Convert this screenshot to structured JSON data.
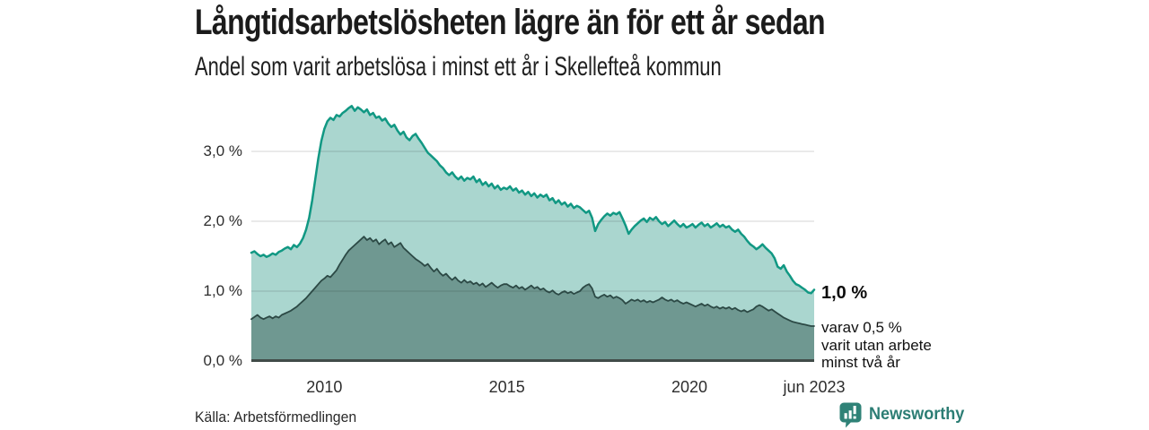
{
  "header": {
    "title": "Långtidsarbetslösheten lägre än för ett år sedan",
    "subtitle": "Andel som varit arbetslösa i minst ett år i Skellefteå kommun"
  },
  "annotations": {
    "latest_value": "1,0 %",
    "secondary_lines": [
      "varav 0,5 %",
      "varit utan arbete",
      "minst två år"
    ]
  },
  "source": {
    "label": "Källa: Arbetsförmedlingen"
  },
  "brand": {
    "name": "Newsworthy",
    "icon": "bar-chart-bubble-icon",
    "color": "#2c7d74"
  },
  "colors": {
    "background": "#ffffff",
    "grid": "rgba(0,0,0,0.13)",
    "baseline": "#414b48",
    "text": "#1b1b1b",
    "brand_teal": "#2c7d74"
  },
  "chart_data": {
    "type": "area",
    "title": "Långtidsarbetslösheten lägre än för ett år sedan",
    "subtitle": "Andel som varit arbetslösa i minst ett år i Skellefteå kommun",
    "x_frequency": "monthly",
    "x_start": 2008.0,
    "x_end_label": "jun 2023",
    "ylim": [
      0,
      3.82
    ],
    "grid": true,
    "legend_position": "none",
    "y_ticks": [
      {
        "y": 0,
        "label": "0,0 %"
      },
      {
        "y": 1,
        "label": "1,0 %"
      },
      {
        "y": 2,
        "label": "2,0 %"
      },
      {
        "y": 3,
        "label": "3,0 %"
      }
    ],
    "x_ticks": [
      {
        "x": 2010,
        "label": "2010"
      },
      {
        "x": 2015,
        "label": "2015"
      },
      {
        "x": 2020,
        "label": "2020"
      },
      {
        "x": 2023.417,
        "label": "jun 2023"
      }
    ],
    "series": [
      {
        "name": "Arbetslösa minst ett år",
        "end_label": "1,0 %",
        "line_color": "#119883",
        "fill_color": "#aad6cf",
        "line_width": 2.5,
        "values": [
          1.55,
          1.57,
          1.53,
          1.5,
          1.52,
          1.49,
          1.51,
          1.54,
          1.52,
          1.56,
          1.58,
          1.61,
          1.63,
          1.6,
          1.66,
          1.63,
          1.68,
          1.76,
          1.88,
          2.05,
          2.3,
          2.6,
          2.9,
          3.15,
          3.32,
          3.43,
          3.48,
          3.45,
          3.52,
          3.5,
          3.55,
          3.58,
          3.62,
          3.65,
          3.58,
          3.63,
          3.6,
          3.56,
          3.6,
          3.52,
          3.55,
          3.48,
          3.5,
          3.44,
          3.47,
          3.4,
          3.35,
          3.38,
          3.3,
          3.24,
          3.28,
          3.2,
          3.16,
          3.22,
          3.25,
          3.18,
          3.12,
          3.05,
          2.98,
          2.94,
          2.9,
          2.86,
          2.8,
          2.76,
          2.7,
          2.66,
          2.7,
          2.64,
          2.6,
          2.64,
          2.58,
          2.62,
          2.6,
          2.64,
          2.56,
          2.6,
          2.52,
          2.56,
          2.5,
          2.54,
          2.47,
          2.51,
          2.45,
          2.48,
          2.46,
          2.5,
          2.44,
          2.47,
          2.41,
          2.44,
          2.38,
          2.42,
          2.36,
          2.4,
          2.34,
          2.38,
          2.35,
          2.38,
          2.3,
          2.33,
          2.26,
          2.3,
          2.24,
          2.27,
          2.21,
          2.25,
          2.19,
          2.22,
          2.2,
          2.16,
          2.12,
          2.15,
          2.05,
          1.86,
          1.96,
          2.02,
          2.07,
          2.11,
          2.08,
          2.12,
          2.1,
          2.13,
          2.04,
          1.94,
          1.82,
          1.88,
          1.93,
          1.97,
          2.01,
          2.04,
          1.99,
          2.05,
          2.02,
          2.06,
          2.0,
          1.96,
          1.99,
          1.93,
          1.97,
          2.01,
          1.96,
          1.92,
          1.96,
          1.91,
          1.93,
          1.96,
          1.91,
          1.95,
          1.98,
          1.93,
          1.96,
          1.91,
          1.94,
          1.97,
          1.92,
          1.95,
          1.91,
          1.93,
          1.88,
          1.85,
          1.88,
          1.82,
          1.78,
          1.72,
          1.67,
          1.64,
          1.6,
          1.63,
          1.67,
          1.62,
          1.58,
          1.54,
          1.47,
          1.35,
          1.32,
          1.37,
          1.28,
          1.22,
          1.15,
          1.1,
          1.08,
          1.05,
          1.02,
          0.98,
          0.97,
          1.02
        ]
      },
      {
        "name": "Varav utan arbete minst två år",
        "end_label": "0,5 %",
        "line_color": "#2c4945",
        "fill_color": "#6f9891",
        "line_width": 1.8,
        "values": [
          0.6,
          0.63,
          0.66,
          0.62,
          0.6,
          0.62,
          0.64,
          0.61,
          0.64,
          0.62,
          0.66,
          0.68,
          0.7,
          0.72,
          0.75,
          0.78,
          0.82,
          0.86,
          0.9,
          0.95,
          1.0,
          1.05,
          1.1,
          1.15,
          1.18,
          1.22,
          1.2,
          1.25,
          1.3,
          1.38,
          1.45,
          1.52,
          1.58,
          1.62,
          1.66,
          1.7,
          1.74,
          1.78,
          1.73,
          1.76,
          1.71,
          1.74,
          1.67,
          1.71,
          1.74,
          1.67,
          1.7,
          1.63,
          1.66,
          1.69,
          1.62,
          1.58,
          1.54,
          1.5,
          1.46,
          1.43,
          1.4,
          1.36,
          1.39,
          1.33,
          1.28,
          1.32,
          1.26,
          1.22,
          1.25,
          1.2,
          1.16,
          1.2,
          1.15,
          1.12,
          1.16,
          1.12,
          1.14,
          1.1,
          1.12,
          1.08,
          1.11,
          1.06,
          1.09,
          1.12,
          1.08,
          1.05,
          1.08,
          1.1,
          1.1,
          1.07,
          1.05,
          1.08,
          1.04,
          1.06,
          1.02,
          1.05,
          1.08,
          1.04,
          1.06,
          1.02,
          1.04,
          1.0,
          0.98,
          1.01,
          0.97,
          0.95,
          0.98,
          1.0,
          0.97,
          0.99,
          0.96,
          0.98,
          1.0,
          1.05,
          1.08,
          1.1,
          1.04,
          0.92,
          0.9,
          0.93,
          0.95,
          0.92,
          0.94,
          0.9,
          0.92,
          0.9,
          0.87,
          0.82,
          0.85,
          0.88,
          0.86,
          0.88,
          0.85,
          0.87,
          0.84,
          0.86,
          0.84,
          0.86,
          0.88,
          0.91,
          0.88,
          0.86,
          0.88,
          0.85,
          0.87,
          0.84,
          0.82,
          0.84,
          0.82,
          0.8,
          0.78,
          0.8,
          0.82,
          0.79,
          0.81,
          0.78,
          0.76,
          0.78,
          0.75,
          0.77,
          0.75,
          0.77,
          0.74,
          0.76,
          0.73,
          0.71,
          0.73,
          0.7,
          0.72,
          0.74,
          0.78,
          0.8,
          0.78,
          0.75,
          0.72,
          0.74,
          0.71,
          0.68,
          0.65,
          0.62,
          0.6,
          0.58,
          0.56,
          0.55,
          0.54,
          0.53,
          0.52,
          0.51,
          0.5,
          0.5
        ]
      }
    ]
  }
}
